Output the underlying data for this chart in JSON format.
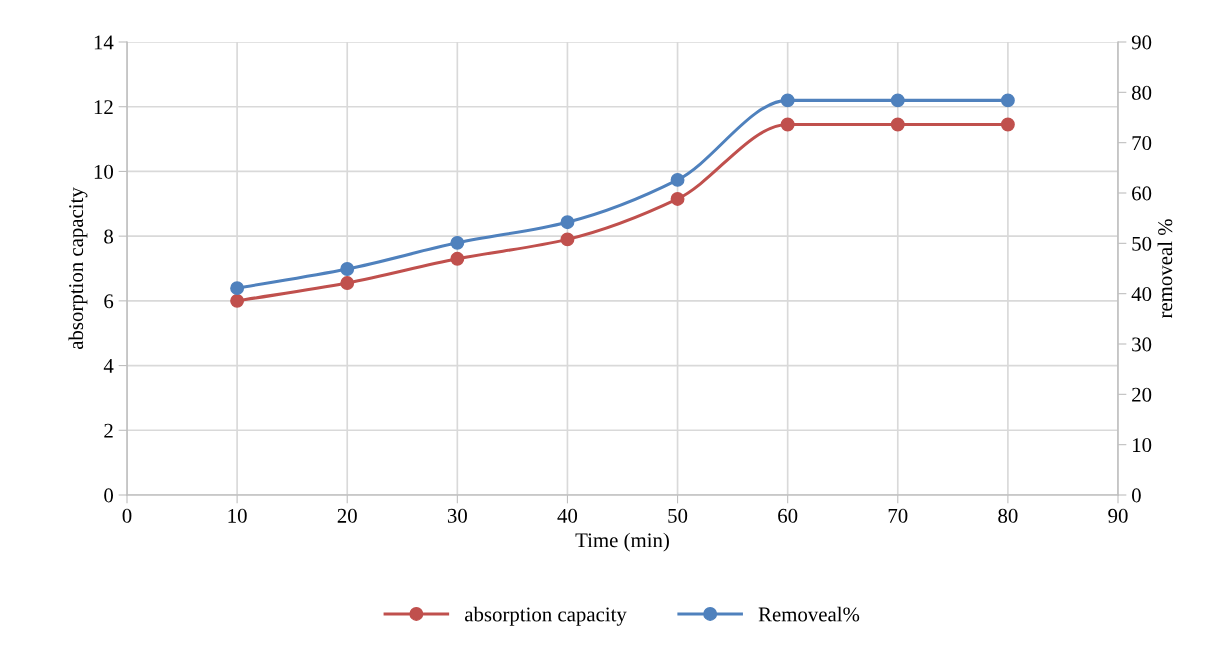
{
  "chart_data": {
    "type": "line",
    "xlabel": "Time (min)",
    "ylabel": "absorption capacity",
    "y2label": "removeal %",
    "x": [
      10,
      20,
      30,
      40,
      50,
      60,
      70,
      80
    ],
    "series": [
      {
        "name": "absorption capacity",
        "color": "#c0504d",
        "values": [
          6.0,
          6.55,
          7.3,
          7.9,
          9.15,
          11.45,
          11.45,
          11.45
        ]
      },
      {
        "name": "Removeal%",
        "color": "#4f81bd",
        "axis": "y2",
        "values": [
          41.1,
          44.9,
          50.1,
          54.2,
          62.6,
          78.4,
          78.4,
          78.4
        ]
      }
    ],
    "xlim": [
      0,
      90
    ],
    "xticks": [
      0,
      10,
      20,
      30,
      40,
      50,
      60,
      70,
      80,
      90
    ],
    "ylim": [
      0,
      14
    ],
    "yticks": [
      0,
      2,
      4,
      6,
      8,
      10,
      12,
      14
    ],
    "y2lim": [
      0,
      90
    ],
    "y2ticks": [
      0,
      10,
      20,
      30,
      40,
      50,
      60,
      70,
      80,
      90
    ],
    "grid": true,
    "legend": "bottom",
    "marker": "circle",
    "line_style": "solid"
  }
}
